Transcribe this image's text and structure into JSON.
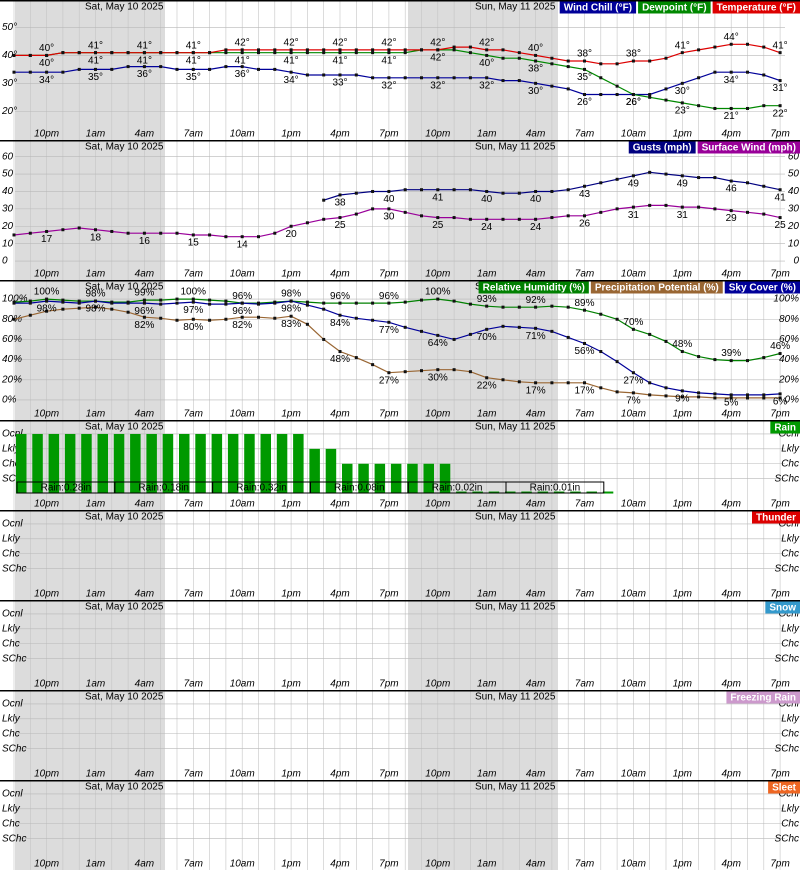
{
  "time_axis": {
    "dates": [
      "Sat, May 10 2025",
      "Sun, May 11 2025"
    ],
    "hour_labels": [
      "10pm",
      "1am",
      "4am",
      "7am",
      "10am",
      "1pm",
      "4pm",
      "7pm",
      "10pm",
      "1am",
      "4am",
      "7am",
      "10am",
      "1pm",
      "4pm",
      "7pm"
    ]
  },
  "chart_data": [
    {
      "type": "line",
      "ylim": [
        14,
        57
      ],
      "grid": true,
      "yticks_right": false,
      "yticks": [
        {
          "value": 20,
          "label": "20°"
        },
        {
          "value": 30,
          "label": "30°"
        },
        {
          "value": 40,
          "label": "40°"
        },
        {
          "value": 50,
          "label": "50°"
        }
      ],
      "series": [
        {
          "name": "Wind Chill (°F)",
          "color": "#000099",
          "values": [
            34,
            34,
            34,
            34,
            35,
            35,
            35,
            36,
            36,
            36,
            35,
            35,
            35,
            36,
            36,
            35,
            35,
            34,
            33,
            33,
            33,
            33,
            32,
            32,
            32,
            32,
            32,
            32,
            32,
            32,
            31,
            31,
            30,
            29,
            28,
            26,
            26,
            26,
            26,
            26,
            28,
            30,
            32,
            34,
            34,
            34,
            33,
            31
          ],
          "value_labels": [
            null,
            null,
            "34°",
            null,
            null,
            "35°",
            null,
            null,
            "36°",
            null,
            null,
            "35°",
            null,
            null,
            "36°",
            null,
            null,
            "34°",
            null,
            null,
            "33°",
            null,
            null,
            "32°",
            null,
            null,
            "32°",
            null,
            null,
            "32°",
            null,
            null,
            "30°",
            null,
            null,
            "26°",
            null,
            null,
            "26°",
            null,
            null,
            "30°",
            null,
            null,
            "34°",
            null,
            null,
            "31°"
          ]
        },
        {
          "name": "Dewpoint (°F)",
          "color": "#008800",
          "values": [
            40,
            40,
            40,
            41,
            41,
            41,
            41,
            41,
            41,
            41,
            41,
            41,
            41,
            41,
            41,
            41,
            41,
            41,
            41,
            41,
            41,
            41,
            41,
            41,
            41,
            42,
            42,
            42,
            41,
            40,
            39,
            39,
            38,
            37,
            36,
            35,
            32,
            29,
            26,
            25,
            24,
            23,
            22,
            21,
            21,
            21,
            22,
            22
          ],
          "value_labels": [
            null,
            null,
            "40°",
            null,
            null,
            "41°",
            null,
            null,
            "41°",
            null,
            null,
            "41°",
            null,
            null,
            "41°",
            null,
            null,
            "41°",
            null,
            null,
            "41°",
            null,
            null,
            "41°",
            null,
            null,
            "42°",
            null,
            null,
            "40°",
            null,
            null,
            "38°",
            null,
            null,
            "35°",
            null,
            null,
            "26°",
            null,
            null,
            "23°",
            null,
            null,
            "21°",
            null,
            null,
            "22°"
          ]
        },
        {
          "name": "Temperature (°F)",
          "color": "#dd0000",
          "values": [
            40,
            40,
            40,
            41,
            41,
            41,
            41,
            41,
            41,
            41,
            41,
            41,
            41,
            42,
            42,
            42,
            42,
            42,
            42,
            42,
            42,
            42,
            42,
            42,
            42,
            42,
            42,
            43,
            43,
            42,
            42,
            41,
            40,
            39,
            38,
            38,
            37,
            37,
            38,
            38,
            39,
            41,
            42,
            43,
            44,
            44,
            43,
            41
          ],
          "value_labels": [
            null,
            null,
            "40°",
            null,
            null,
            "41°",
            null,
            null,
            "41°",
            null,
            null,
            "41°",
            null,
            null,
            "42°",
            null,
            null,
            "42°",
            null,
            null,
            "42°",
            null,
            null,
            "42°",
            null,
            null,
            "42°",
            null,
            null,
            "42°",
            null,
            null,
            "40°",
            null,
            null,
            "38°",
            null,
            null,
            "38°",
            null,
            null,
            "41°",
            null,
            null,
            "44°",
            null,
            null,
            "41°"
          ]
        }
      ]
    },
    {
      "type": "line",
      "ylim": [
        -4,
        65
      ],
      "grid": true,
      "yticks_right": true,
      "yticks": [
        0,
        10,
        20,
        30,
        40,
        50,
        60
      ],
      "series": [
        {
          "name": "Gusts (mph)",
          "color": "#000080",
          "values": [
            null,
            null,
            null,
            null,
            null,
            null,
            null,
            null,
            null,
            null,
            null,
            null,
            null,
            null,
            null,
            null,
            null,
            null,
            null,
            35,
            38,
            39,
            40,
            40,
            41,
            41,
            41,
            41,
            41,
            40,
            39,
            39,
            40,
            40,
            41,
            43,
            45,
            47,
            49,
            51,
            50,
            49,
            48,
            48,
            46,
            45,
            43,
            41
          ]
        },
        {
          "name": "Surface Wind (mph)",
          "color": "#990099",
          "values": [
            15,
            16,
            17,
            18,
            19,
            18,
            17,
            16,
            16,
            16,
            16,
            15,
            15,
            14,
            14,
            14,
            16,
            20,
            22,
            24,
            25,
            27,
            30,
            30,
            28,
            26,
            25,
            25,
            24,
            24,
            24,
            24,
            24,
            25,
            26,
            26,
            28,
            30,
            31,
            32,
            32,
            31,
            31,
            30,
            29,
            28,
            27,
            25
          ]
        }
      ]
    },
    {
      "type": "line",
      "ylim": [
        -8,
        111
      ],
      "grid": true,
      "yticks_right": true,
      "yticks": [
        {
          "value": 0,
          "label": "0%"
        },
        {
          "value": 20,
          "label": "20%"
        },
        {
          "value": 40,
          "label": "40%"
        },
        {
          "value": 60,
          "label": "60%"
        },
        {
          "value": 80,
          "label": "80%"
        },
        {
          "value": 100,
          "label": "100%"
        }
      ],
      "series": [
        {
          "name": "Relative Humidity (%)",
          "color": "#008000",
          "values": [
            97,
            98,
            100,
            99,
            98,
            98,
            97,
            97,
            99,
            99,
            100,
            100,
            99,
            98,
            96,
            96,
            97,
            98,
            97,
            96,
            96,
            96,
            96,
            96,
            97,
            99,
            100,
            98,
            95,
            93,
            92,
            92,
            92,
            93,
            92,
            89,
            85,
            80,
            70,
            65,
            58,
            48,
            43,
            40,
            39,
            39,
            42,
            46
          ],
          "value_labels": [
            null,
            null,
            "100%",
            null,
            null,
            "98%",
            null,
            null,
            "99%",
            null,
            null,
            "100%",
            null,
            null,
            "96%",
            null,
            null,
            "98%",
            null,
            null,
            "96%",
            null,
            null,
            "96%",
            null,
            null,
            "100%",
            null,
            null,
            "93%",
            null,
            null,
            "92%",
            null,
            null,
            "89%",
            null,
            null,
            "70%",
            null,
            null,
            "48%",
            null,
            null,
            "39%",
            null,
            null,
            "46%"
          ]
        },
        {
          "name": "Precipitation Potential (%)",
          "color": "#996633",
          "values": [
            80,
            84,
            88,
            90,
            91,
            92,
            90,
            87,
            82,
            81,
            79,
            80,
            79,
            80,
            82,
            82,
            81,
            83,
            75,
            60,
            48,
            42,
            35,
            27,
            28,
            29,
            30,
            30,
            28,
            22,
            20,
            18,
            17,
            17,
            17,
            17,
            12,
            8,
            7,
            5,
            4,
            3,
            3,
            2,
            2,
            2,
            2,
            2
          ],
          "value_labels": [
            null,
            null,
            null,
            null,
            null,
            null,
            null,
            null,
            "82%",
            null,
            null,
            "80%",
            null,
            null,
            "82%",
            null,
            null,
            "83%",
            null,
            null,
            "48%",
            null,
            null,
            "27%",
            null,
            null,
            "30%",
            null,
            null,
            "22%",
            null,
            null,
            "17%",
            null,
            null,
            "17%",
            null,
            null,
            "7%",
            null,
            null,
            null,
            null,
            null,
            null,
            null,
            null,
            null
          ]
        },
        {
          "name": "Sky Cover (%)",
          "color": "#000099",
          "values": [
            96,
            96,
            98,
            97,
            96,
            98,
            96,
            96,
            96,
            95,
            96,
            97,
            95,
            95,
            96,
            95,
            96,
            98,
            94,
            90,
            84,
            81,
            79,
            77,
            72,
            68,
            64,
            60,
            65,
            70,
            73,
            72,
            71,
            68,
            62,
            56,
            48,
            38,
            27,
            17,
            12,
            9,
            7,
            6,
            5,
            5,
            5,
            6
          ],
          "value_labels": [
            null,
            null,
            "98%",
            null,
            null,
            "98%",
            null,
            null,
            "96%",
            null,
            null,
            "97%",
            null,
            null,
            "96%",
            null,
            null,
            "98%",
            null,
            null,
            "84%",
            null,
            null,
            "77%",
            null,
            null,
            "64%",
            null,
            null,
            "70%",
            null,
            null,
            "71%",
            null,
            null,
            "56%",
            null,
            null,
            "27%",
            null,
            null,
            "9%",
            null,
            null,
            "5%",
            null,
            null,
            "6%"
          ]
        }
      ]
    },
    {
      "type": "bar",
      "ylim": [
        -0.3,
        4.4
      ],
      "grid": true,
      "yticks_right": true,
      "yticks": [
        {
          "value": 1,
          "label": "SChc"
        },
        {
          "value": 2,
          "label": "Chc"
        },
        {
          "value": 3,
          "label": "Lkly"
        },
        {
          "value": 4,
          "label": "Ocnl"
        }
      ],
      "series": [
        {
          "name": "Rain",
          "color": "#009900",
          "values": [
            4,
            4,
            4,
            4,
            4,
            4,
            4,
            4,
            4,
            4,
            4,
            4,
            4,
            4,
            4,
            4,
            4,
            4,
            3,
            3,
            2,
            2,
            2,
            2,
            2,
            2,
            2,
            0,
            0,
            0,
            0,
            0,
            0,
            0,
            0,
            0,
            0,
            null,
            null,
            null,
            null,
            null,
            null,
            null,
            null,
            null,
            null,
            null
          ]
        }
      ],
      "amounts": {
        "values": [
          0.28,
          0.18,
          0.32,
          0.08,
          0.02,
          0.01
        ],
        "value_labels": [
          "Rain:0.28in",
          "Rain:0.18in",
          "Rain:0.32in",
          "Rain:0.08in",
          "Rain:0.02in",
          "Rain:0.01in"
        ]
      }
    },
    {
      "type": "bar",
      "ylim": [
        -0.3,
        4.4
      ],
      "grid": true,
      "yticks_right": true,
      "yticks": [
        {
          "value": 1,
          "label": "SChc"
        },
        {
          "value": 2,
          "label": "Chc"
        },
        {
          "value": 3,
          "label": "Lkly"
        },
        {
          "value": 4,
          "label": "Ocnl"
        }
      ],
      "series": [
        {
          "name": "Thunder",
          "color": "#dd0000"
        }
      ]
    },
    {
      "type": "bar",
      "ylim": [
        -0.3,
        4.4
      ],
      "grid": true,
      "yticks_right": true,
      "yticks": [
        {
          "value": 1,
          "label": "SChc"
        },
        {
          "value": 2,
          "label": "Chc"
        },
        {
          "value": 3,
          "label": "Lkly"
        },
        {
          "value": 4,
          "label": "Ocnl"
        }
      ],
      "series": [
        {
          "name": "Snow",
          "color": "#3399cc"
        }
      ]
    },
    {
      "type": "bar",
      "ylim": [
        -0.3,
        4.4
      ],
      "grid": true,
      "yticks_right": true,
      "yticks": [
        {
          "value": 1,
          "label": "SChc"
        },
        {
          "value": 2,
          "label": "Chc"
        },
        {
          "value": 3,
          "label": "Lkly"
        },
        {
          "value": 4,
          "label": "Ocnl"
        }
      ],
      "series": [
        {
          "name": "Freezing Rain",
          "color": "#cc99cc"
        }
      ]
    },
    {
      "type": "bar",
      "ylim": [
        -0.3,
        4.4
      ],
      "grid": true,
      "yticks_right": true,
      "yticks": [
        {
          "value": 1,
          "label": "SChc"
        },
        {
          "value": 2,
          "label": "Chc"
        },
        {
          "value": 3,
          "label": "Lkly"
        },
        {
          "value": 4,
          "label": "Ocnl"
        }
      ],
      "series": [
        {
          "name": "Sleet",
          "color": "#ee6622"
        }
      ]
    }
  ]
}
